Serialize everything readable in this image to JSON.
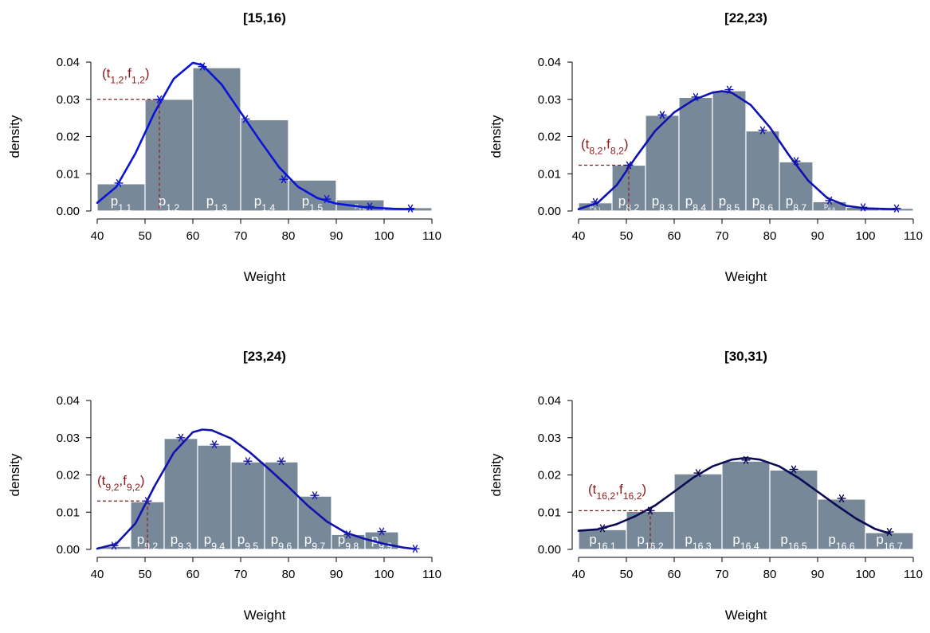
{
  "colors": {
    "bar": "#778899",
    "bar_label": "#ffffff",
    "annotation": "#8b1a1a",
    "point": "#1a1aaa",
    "axis": "#000000"
  },
  "chart_data": [
    {
      "type": "bar",
      "title": "[15,16)",
      "xlabel": "Weight",
      "ylabel": "density",
      "xlim": [
        40,
        110
      ],
      "ylim": [
        0,
        0.04
      ],
      "xticks": [
        40,
        50,
        60,
        70,
        80,
        90,
        100,
        110
      ],
      "yticks": [
        "0.00",
        "0.01",
        "0.02",
        "0.03",
        "0.04"
      ],
      "curve_color": "#0a14d8",
      "point_color": "#0a14d8",
      "bins": [
        {
          "x0": 40,
          "x1": 50,
          "value": 0.0073,
          "label": "p",
          "sub": "1,1"
        },
        {
          "x0": 50,
          "x1": 60,
          "value": 0.03,
          "label": "p",
          "sub": "1,2"
        },
        {
          "x0": 60,
          "x1": 70,
          "value": 0.0385,
          "label": "p",
          "sub": "1,3"
        },
        {
          "x0": 70,
          "x1": 80,
          "value": 0.0245,
          "label": "p",
          "sub": "1,4"
        },
        {
          "x0": 80,
          "x1": 90,
          "value": 0.0083,
          "label": "p",
          "sub": "1,5"
        },
        {
          "x0": 90,
          "x1": 100,
          "value": 0.003,
          "label": "p",
          "sub": "1,6",
          "small": true
        },
        {
          "x0": 100,
          "x1": 110,
          "value": 0.0009,
          "label": "",
          "sub": ""
        }
      ],
      "points": [
        [
          44.5,
          0.0075
        ],
        [
          53,
          0.03
        ],
        [
          62,
          0.0388
        ],
        [
          71,
          0.0247
        ],
        [
          79,
          0.0085
        ],
        [
          88,
          0.0032
        ],
        [
          97,
          0.0012
        ],
        [
          105.5,
          0.0007
        ]
      ],
      "curve": [
        [
          40,
          0.0022
        ],
        [
          44,
          0.0065
        ],
        [
          48,
          0.0155
        ],
        [
          52,
          0.0265
        ],
        [
          56,
          0.0355
        ],
        [
          60,
          0.0398
        ],
        [
          62,
          0.0392
        ],
        [
          66,
          0.034
        ],
        [
          70,
          0.0265
        ],
        [
          74,
          0.019
        ],
        [
          78,
          0.0118
        ],
        [
          82,
          0.0065
        ],
        [
          86,
          0.0035
        ],
        [
          90,
          0.002
        ],
        [
          96,
          0.001
        ],
        [
          102,
          0.0006
        ],
        [
          106,
          0.0005
        ]
      ],
      "annotation": {
        "t": "t",
        "f": "f",
        "sub": "1,2",
        "x": 53,
        "y": 0.03,
        "label_x": 41,
        "label_y": 0.0358
      }
    },
    {
      "type": "bar",
      "title": "[22,23)",
      "xlabel": "Weight",
      "ylabel": "density",
      "xlim": [
        40,
        110
      ],
      "ylim": [
        0,
        0.04
      ],
      "xticks": [
        40,
        50,
        60,
        70,
        80,
        90,
        100,
        110
      ],
      "yticks": [
        "0.00",
        "0.01",
        "0.02",
        "0.03",
        "0.04"
      ],
      "curve_color": "#1012b0",
      "point_color": "#1012b0",
      "bins": [
        {
          "x0": 40,
          "x1": 47,
          "value": 0.0022,
          "label": "p",
          "sub": "8,1",
          "small": true
        },
        {
          "x0": 47,
          "x1": 54,
          "value": 0.0123,
          "label": "p",
          "sub": "8,2"
        },
        {
          "x0": 54,
          "x1": 61,
          "value": 0.0257,
          "label": "p",
          "sub": "8,3"
        },
        {
          "x0": 61,
          "x1": 68,
          "value": 0.0305,
          "label": "p",
          "sub": "8,4"
        },
        {
          "x0": 68,
          "x1": 75,
          "value": 0.0323,
          "label": "p",
          "sub": "8,5"
        },
        {
          "x0": 75,
          "x1": 82,
          "value": 0.0215,
          "label": "p",
          "sub": "8,6"
        },
        {
          "x0": 82,
          "x1": 89,
          "value": 0.0132,
          "label": "p",
          "sub": "8,7"
        },
        {
          "x0": 89,
          "x1": 96,
          "value": 0.0025,
          "label": "p",
          "sub": "8,8",
          "small": true
        },
        {
          "x0": 96,
          "x1": 103,
          "value": 0.001,
          "label": "",
          "sub": ""
        },
        {
          "x0": 103,
          "x1": 110,
          "value": 0.0007,
          "label": "",
          "sub": ""
        }
      ],
      "points": [
        [
          43.5,
          0.0024
        ],
        [
          50.5,
          0.0123
        ],
        [
          57.5,
          0.0258
        ],
        [
          64.5,
          0.0306
        ],
        [
          71.5,
          0.0326
        ],
        [
          78.5,
          0.0217
        ],
        [
          85.5,
          0.0134
        ],
        [
          92.5,
          0.0028
        ],
        [
          99.5,
          0.001
        ],
        [
          106.5,
          0.0007
        ]
      ],
      "curve": [
        [
          40,
          0.0005
        ],
        [
          44,
          0.0022
        ],
        [
          48,
          0.007
        ],
        [
          52,
          0.0145
        ],
        [
          56,
          0.0215
        ],
        [
          60,
          0.0265
        ],
        [
          64,
          0.0298
        ],
        [
          68,
          0.0318
        ],
        [
          70,
          0.0322
        ],
        [
          72,
          0.0318
        ],
        [
          76,
          0.0285
        ],
        [
          80,
          0.0225
        ],
        [
          84,
          0.015
        ],
        [
          88,
          0.0082
        ],
        [
          92,
          0.0035
        ],
        [
          96,
          0.0014
        ],
        [
          100,
          0.0007
        ],
        [
          106,
          0.0005
        ]
      ],
      "annotation": {
        "t": "t",
        "f": "f",
        "sub": "8,2",
        "x": 50.5,
        "y": 0.0123,
        "label_x": 40.5,
        "label_y": 0.0168
      }
    },
    {
      "type": "bar",
      "title": "[23,24)",
      "xlabel": "Weight",
      "ylabel": "density",
      "xlim": [
        40,
        110
      ],
      "ylim": [
        0,
        0.04
      ],
      "xticks": [
        40,
        50,
        60,
        70,
        80,
        90,
        100,
        110
      ],
      "yticks": [
        "0.00",
        "0.01",
        "0.02",
        "0.03",
        "0.04"
      ],
      "curve_color": "#1012b0",
      "point_color": "#1a1aaa",
      "bins": [
        {
          "x0": 40,
          "x1": 47,
          "value": 0.0008,
          "label": "",
          "sub": ""
        },
        {
          "x0": 47,
          "x1": 54,
          "value": 0.0128,
          "label": "p",
          "sub": "9,2"
        },
        {
          "x0": 54,
          "x1": 61,
          "value": 0.0298,
          "label": "p",
          "sub": "9,3"
        },
        {
          "x0": 61,
          "x1": 68,
          "value": 0.028,
          "label": "p",
          "sub": "9,4"
        },
        {
          "x0": 68,
          "x1": 75,
          "value": 0.0235,
          "label": "p",
          "sub": "9,5"
        },
        {
          "x0": 75,
          "x1": 82,
          "value": 0.0235,
          "label": "p",
          "sub": "9,6"
        },
        {
          "x0": 82,
          "x1": 89,
          "value": 0.0143,
          "label": "p",
          "sub": "9,7"
        },
        {
          "x0": 89,
          "x1": 96,
          "value": 0.004,
          "label": "p",
          "sub": "9,8"
        },
        {
          "x0": 96,
          "x1": 103,
          "value": 0.0047,
          "label": "p",
          "sub": "9,9"
        }
      ],
      "points": [
        [
          43.5,
          0.001
        ],
        [
          50.5,
          0.013
        ],
        [
          57.5,
          0.03
        ],
        [
          64.5,
          0.0282
        ],
        [
          71.5,
          0.0237
        ],
        [
          78.5,
          0.0237
        ],
        [
          85.5,
          0.0145
        ],
        [
          92.5,
          0.004
        ],
        [
          99.5,
          0.0048
        ],
        [
          106.5,
          0.0002
        ]
      ],
      "curve": [
        [
          40,
          0.0002
        ],
        [
          44,
          0.0015
        ],
        [
          48,
          0.007
        ],
        [
          52,
          0.017
        ],
        [
          56,
          0.026
        ],
        [
          60,
          0.0315
        ],
        [
          62,
          0.0322
        ],
        [
          64,
          0.032
        ],
        [
          68,
          0.0298
        ],
        [
          72,
          0.026
        ],
        [
          76,
          0.0215
        ],
        [
          80,
          0.0168
        ],
        [
          84,
          0.0118
        ],
        [
          88,
          0.0075
        ],
        [
          92,
          0.0045
        ],
        [
          96,
          0.0028
        ],
        [
          100,
          0.0015
        ],
        [
          104,
          0.0005
        ],
        [
          106.5,
          0.0001
        ]
      ],
      "annotation": {
        "t": "t",
        "f": "f",
        "sub": "9,2",
        "x": 50.5,
        "y": 0.013,
        "label_x": 40,
        "label_y": 0.0173
      }
    },
    {
      "type": "bar",
      "title": "[30,31)",
      "xlabel": "Weight",
      "ylabel": "density",
      "xlim": [
        40,
        110
      ],
      "ylim": [
        0,
        0.04
      ],
      "xticks": [
        40,
        50,
        60,
        70,
        80,
        90,
        100,
        110
      ],
      "yticks": [
        "0.00",
        "0.01",
        "0.02",
        "0.03",
        "0.04"
      ],
      "curve_color": "#0a0a55",
      "point_color": "#0a0a55",
      "bins": [
        {
          "x0": 40,
          "x1": 50,
          "value": 0.0053,
          "label": "p",
          "sub": "16,1"
        },
        {
          "x0": 50,
          "x1": 60,
          "value": 0.0102,
          "label": "p",
          "sub": "16,2"
        },
        {
          "x0": 60,
          "x1": 70,
          "value": 0.0203,
          "label": "p",
          "sub": "16,3"
        },
        {
          "x0": 70,
          "x1": 80,
          "value": 0.0237,
          "label": "p",
          "sub": "16,4"
        },
        {
          "x0": 80,
          "x1": 90,
          "value": 0.0213,
          "label": "p",
          "sub": "16,5"
        },
        {
          "x0": 90,
          "x1": 100,
          "value": 0.0135,
          "label": "p",
          "sub": "16,6"
        },
        {
          "x0": 100,
          "x1": 110,
          "value": 0.0045,
          "label": "p",
          "sub": "16,7"
        }
      ],
      "points": [
        [
          45,
          0.0057
        ],
        [
          55,
          0.0104
        ],
        [
          65,
          0.0205
        ],
        [
          75,
          0.024
        ],
        [
          85,
          0.0215
        ],
        [
          95,
          0.0137
        ],
        [
          105,
          0.0047
        ]
      ],
      "curve": [
        [
          40,
          0.005
        ],
        [
          44,
          0.0054
        ],
        [
          48,
          0.0068
        ],
        [
          52,
          0.009
        ],
        [
          56,
          0.0118
        ],
        [
          60,
          0.0155
        ],
        [
          64,
          0.0193
        ],
        [
          68,
          0.0223
        ],
        [
          72,
          0.0241
        ],
        [
          75,
          0.0246
        ],
        [
          78,
          0.0241
        ],
        [
          82,
          0.0223
        ],
        [
          86,
          0.0192
        ],
        [
          90,
          0.0155
        ],
        [
          94,
          0.0118
        ],
        [
          98,
          0.0083
        ],
        [
          102,
          0.0055
        ],
        [
          105,
          0.0043
        ]
      ],
      "annotation": {
        "t": "t",
        "f": "f",
        "sub": "16,2",
        "x": 55,
        "y": 0.0104,
        "label_x": 42,
        "label_y": 0.015
      }
    }
  ]
}
